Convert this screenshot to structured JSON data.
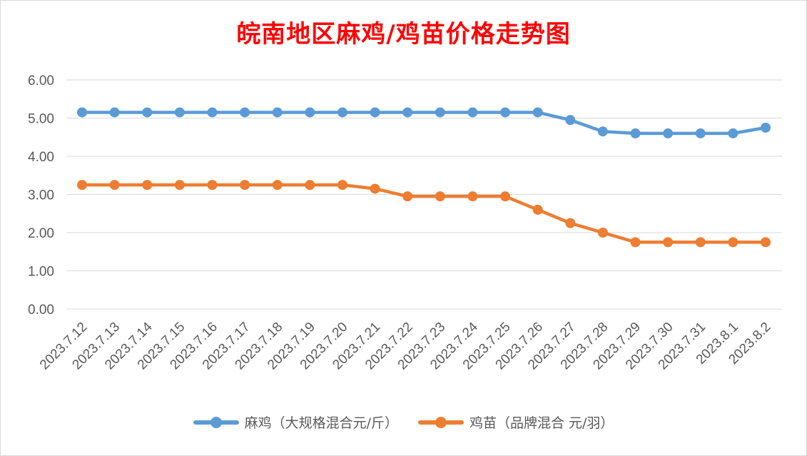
{
  "chart_data": {
    "type": "line",
    "title": "皖南地区麻鸡/鸡苗价格走势图",
    "categories": [
      "2023.7.12",
      "2023.7.13",
      "2023.7.14",
      "2023.7.15",
      "2023.7.16",
      "2023.7.17",
      "2023.7.18",
      "2023.7.19",
      "2023.7.20",
      "2023.7.21",
      "2023.7.22",
      "2023.7.23",
      "2023.7.24",
      "2023.7.25",
      "2023.7.26",
      "2023.7.27",
      "2023.7.28",
      "2023.7.29",
      "2023.7.30",
      "2023.7.31",
      "2023.8.1",
      "2023.8.2"
    ],
    "y_ticks": [
      "0.00",
      "1.00",
      "2.00",
      "3.00",
      "4.00",
      "5.00",
      "6.00"
    ],
    "ylim": [
      0,
      6
    ],
    "grid": true,
    "legend_position": "bottom",
    "series": [
      {
        "name": "麻鸡（大规格混合元/斤）",
        "color": "#5b9bd5",
        "values": [
          5.15,
          5.15,
          5.15,
          5.15,
          5.15,
          5.15,
          5.15,
          5.15,
          5.15,
          5.15,
          5.15,
          5.15,
          5.15,
          5.15,
          5.15,
          4.95,
          4.65,
          4.6,
          4.6,
          4.6,
          4.6,
          4.75
        ]
      },
      {
        "name": "鸡苗（品牌混合 元/羽）",
        "color": "#ed7d31",
        "values": [
          3.25,
          3.25,
          3.25,
          3.25,
          3.25,
          3.25,
          3.25,
          3.25,
          3.25,
          3.15,
          2.95,
          2.95,
          2.95,
          2.95,
          2.6,
          2.25,
          2.0,
          1.75,
          1.75,
          1.75,
          1.75,
          1.75
        ]
      }
    ]
  }
}
